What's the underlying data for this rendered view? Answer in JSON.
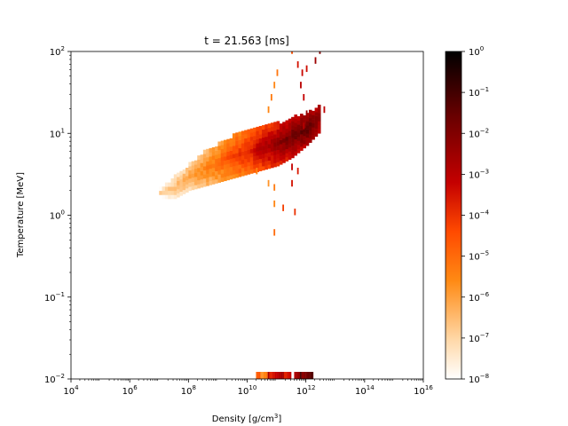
{
  "chart_data": {
    "type": "heatmap",
    "title": "t = 21.563 [ms]",
    "xlabel": "Density [g/cm",
    "xlabel_sup": "3",
    "xlabel_end": "]",
    "ylabel": "Temperature [MeV]",
    "x_scale": "log",
    "y_scale": "log",
    "xlim": [
      10000,
      10000000000000000
    ],
    "ylim": [
      0.01,
      100
    ],
    "x_ticks": [
      {
        "exp": 4,
        "base": "10",
        "sup": "4"
      },
      {
        "exp": 6,
        "base": "10",
        "sup": "6"
      },
      {
        "exp": 8,
        "base": "10",
        "sup": "8"
      },
      {
        "exp": 10,
        "base": "10",
        "sup": "10"
      },
      {
        "exp": 12,
        "base": "10",
        "sup": "12"
      },
      {
        "exp": 14,
        "base": "10",
        "sup": "14"
      },
      {
        "exp": 16,
        "base": "10",
        "sup": "16"
      }
    ],
    "y_ticks": [
      {
        "exp": -2,
        "base": "10",
        "sup": "−2"
      },
      {
        "exp": -1,
        "base": "10",
        "sup": "−1"
      },
      {
        "exp": 0,
        "base": "10",
        "sup": "0"
      },
      {
        "exp": 1,
        "base": "10",
        "sup": "1"
      },
      {
        "exp": 2,
        "base": "10",
        "sup": "2"
      }
    ],
    "colormap": "gist_heat_r",
    "colormap_stops": [
      "#ffffff",
      "#ffd8a8",
      "#ff8a14",
      "#ff4a00",
      "#c40000",
      "#6a0000",
      "#000000"
    ],
    "colorbar": {
      "scale": "log",
      "range": [
        1e-08,
        1
      ],
      "ticks": [
        {
          "exp": 0,
          "base": "10",
          "sup": "0"
        },
        {
          "exp": -1,
          "base": "10",
          "sup": "−1"
        },
        {
          "exp": -2,
          "base": "10",
          "sup": "−2"
        },
        {
          "exp": -3,
          "base": "10",
          "sup": "−3"
        },
        {
          "exp": -4,
          "base": "10",
          "sup": "−4"
        },
        {
          "exp": -5,
          "base": "10",
          "sup": "−5"
        },
        {
          "exp": -6,
          "base": "10",
          "sup": "−6"
        },
        {
          "exp": -7,
          "base": "10",
          "sup": "−7"
        },
        {
          "exp": -8,
          "base": "10",
          "sup": "−8"
        }
      ]
    },
    "bin_size_log": {
      "x": 0.1,
      "y": 0.05
    },
    "band": [
      {
        "x": 7.0,
        "y_lo": 0.2,
        "y_hi": 0.3,
        "c_lo": -7.8,
        "c_hi": -7.0
      },
      {
        "x": 7.5,
        "y_lo": 0.2,
        "y_hi": 0.45,
        "c_lo": -7.5,
        "c_hi": -6.5
      },
      {
        "x": 8.0,
        "y_lo": 0.3,
        "y_hi": 0.6,
        "c_lo": -7.0,
        "c_hi": -6.0
      },
      {
        "x": 8.5,
        "y_lo": 0.35,
        "y_hi": 0.75,
        "c_lo": -6.5,
        "c_hi": -5.5
      },
      {
        "x": 9.0,
        "y_lo": 0.4,
        "y_hi": 0.85,
        "c_lo": -6.0,
        "c_hi": -5.0
      },
      {
        "x": 9.5,
        "y_lo": 0.45,
        "y_hi": 0.95,
        "c_lo": -5.5,
        "c_hi": -4.2
      },
      {
        "x": 10.0,
        "y_lo": 0.5,
        "y_hi": 1.0,
        "c_lo": -5.0,
        "c_hi": -3.6
      },
      {
        "x": 10.5,
        "y_lo": 0.55,
        "y_hi": 1.05,
        "c_lo": -4.3,
        "c_hi": -2.8
      },
      {
        "x": 11.0,
        "y_lo": 0.6,
        "y_hi": 1.1,
        "c_lo": -3.8,
        "c_hi": -2.2
      },
      {
        "x": 11.5,
        "y_lo": 0.7,
        "y_hi": 1.18,
        "c_lo": -3.3,
        "c_hi": -1.6
      },
      {
        "x": 12.0,
        "y_lo": 0.85,
        "y_hi": 1.22,
        "c_lo": -2.8,
        "c_hi": -1.3
      },
      {
        "x": 12.4,
        "y_lo": 1.0,
        "y_hi": 1.3,
        "c_lo": -2.9,
        "c_hi": -2.2
      }
    ],
    "points": [
      {
        "x": 10.3,
        "y": 0.5,
        "c": -5.5
      },
      {
        "x": 10.7,
        "y": 0.35,
        "c": -5.8
      },
      {
        "x": 10.9,
        "y": 0.3,
        "c": -5.3
      },
      {
        "x": 10.9,
        "y": 0.1,
        "c": -5.5
      },
      {
        "x": 11.2,
        "y": 0.05,
        "c": -4.2
      },
      {
        "x": 11.6,
        "y": 0.0,
        "c": -4.0
      },
      {
        "x": 11.5,
        "y": 0.35,
        "c": -3.5
      },
      {
        "x": 11.7,
        "y": 0.5,
        "c": -3.6
      },
      {
        "x": 11.5,
        "y": 0.55,
        "c": -3.2
      },
      {
        "x": 10.9,
        "y": -0.25,
        "c": -5.0
      },
      {
        "x": 10.7,
        "y": 1.25,
        "c": -5.5
      },
      {
        "x": 10.8,
        "y": 1.4,
        "c": -5.3
      },
      {
        "x": 10.9,
        "y": 1.55,
        "c": -5.5
      },
      {
        "x": 11.0,
        "y": 1.7,
        "c": -5.2
      },
      {
        "x": 11.5,
        "y": 1.97,
        "c": -4.5
      },
      {
        "x": 11.7,
        "y": 1.8,
        "c": -3.5
      },
      {
        "x": 11.85,
        "y": 1.7,
        "c": -3.3
      },
      {
        "x": 11.8,
        "y": 1.55,
        "c": -3.0
      },
      {
        "x": 11.9,
        "y": 1.4,
        "c": -3.2
      },
      {
        "x": 12.0,
        "y": 1.75,
        "c": -3.4
      },
      {
        "x": 12.3,
        "y": 1.85,
        "c": -2.5
      },
      {
        "x": 12.45,
        "y": 1.97,
        "c": -2.0
      },
      {
        "x": 12.6,
        "y": 1.25,
        "c": -3.1
      },
      {
        "x": 12.0,
        "y": 1.2,
        "c": -2.4
      },
      {
        "x": 11.9,
        "y": 1.05,
        "c": -3.0
      }
    ],
    "bottom_strip": [
      {
        "x_lo": 10.3,
        "x_hi": 10.7,
        "c": -5.2
      },
      {
        "x_lo": 10.7,
        "x_hi": 11.5,
        "c": -3.2
      },
      {
        "x_lo": 11.6,
        "x_hi": 11.8,
        "c": -2.3
      },
      {
        "x_lo": 11.8,
        "x_hi": 12.25,
        "c": -1.6
      }
    ]
  }
}
